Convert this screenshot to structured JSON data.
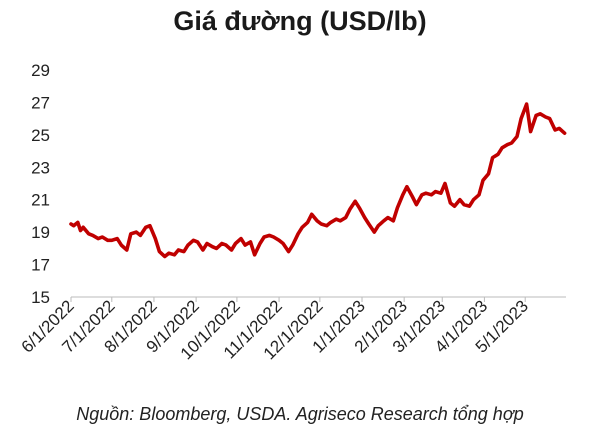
{
  "chart_data": {
    "type": "line",
    "title": "Giá đường (USD/lb)",
    "xlabel": "",
    "ylabel": "",
    "ylim": [
      15,
      29
    ],
    "yticks": [
      15,
      17,
      19,
      21,
      23,
      25,
      27,
      29
    ],
    "xticks": [
      "6/1/2022",
      "7/1/2022",
      "8/1/2022",
      "9/1/2022",
      "10/1/2022",
      "11/1/2022",
      "12/1/2022",
      "1/1/2023",
      "2/1/2023",
      "3/1/2023",
      "4/1/2023",
      "5/1/2023"
    ],
    "grid": false,
    "legend": "none",
    "series": [
      {
        "color": "#c00000",
        "points": [
          [
            "2022-06-01",
            19.5
          ],
          [
            "2022-06-03",
            19.4
          ],
          [
            "2022-06-06",
            19.6
          ],
          [
            "2022-06-08",
            19.1
          ],
          [
            "2022-06-10",
            19.3
          ],
          [
            "2022-06-14",
            18.9
          ],
          [
            "2022-06-17",
            18.8
          ],
          [
            "2022-06-21",
            18.6
          ],
          [
            "2022-06-24",
            18.7
          ],
          [
            "2022-06-28",
            18.5
          ],
          [
            "2022-07-01",
            18.5
          ],
          [
            "2022-07-05",
            18.6
          ],
          [
            "2022-07-08",
            18.2
          ],
          [
            "2022-07-12",
            17.9
          ],
          [
            "2022-07-15",
            18.9
          ],
          [
            "2022-07-19",
            19.0
          ],
          [
            "2022-07-22",
            18.8
          ],
          [
            "2022-07-26",
            19.3
          ],
          [
            "2022-07-29",
            19.4
          ],
          [
            "2022-08-02",
            18.6
          ],
          [
            "2022-08-05",
            17.8
          ],
          [
            "2022-08-09",
            17.5
          ],
          [
            "2022-08-12",
            17.7
          ],
          [
            "2022-08-16",
            17.6
          ],
          [
            "2022-08-19",
            17.9
          ],
          [
            "2022-08-23",
            17.8
          ],
          [
            "2022-08-26",
            18.2
          ],
          [
            "2022-08-30",
            18.5
          ],
          [
            "2022-09-02",
            18.4
          ],
          [
            "2022-09-06",
            17.9
          ],
          [
            "2022-09-09",
            18.3
          ],
          [
            "2022-09-13",
            18.1
          ],
          [
            "2022-09-16",
            18.0
          ],
          [
            "2022-09-20",
            18.3
          ],
          [
            "2022-09-23",
            18.2
          ],
          [
            "2022-09-27",
            17.9
          ],
          [
            "2022-09-30",
            18.3
          ],
          [
            "2022-10-04",
            18.6
          ],
          [
            "2022-10-07",
            18.2
          ],
          [
            "2022-10-11",
            18.4
          ],
          [
            "2022-10-14",
            17.6
          ],
          [
            "2022-10-18",
            18.3
          ],
          [
            "2022-10-21",
            18.7
          ],
          [
            "2022-10-25",
            18.8
          ],
          [
            "2022-10-28",
            18.7
          ],
          [
            "2022-11-01",
            18.5
          ],
          [
            "2022-11-04",
            18.3
          ],
          [
            "2022-11-08",
            17.8
          ],
          [
            "2022-11-11",
            18.2
          ],
          [
            "2022-11-15",
            18.9
          ],
          [
            "2022-11-18",
            19.3
          ],
          [
            "2022-11-22",
            19.6
          ],
          [
            "2022-11-25",
            20.1
          ],
          [
            "2022-11-29",
            19.7
          ],
          [
            "2022-12-02",
            19.5
          ],
          [
            "2022-12-06",
            19.4
          ],
          [
            "2022-12-09",
            19.6
          ],
          [
            "2022-12-13",
            19.8
          ],
          [
            "2022-12-16",
            19.7
          ],
          [
            "2022-12-20",
            19.9
          ],
          [
            "2022-12-23",
            20.4
          ],
          [
            "2022-12-27",
            20.9
          ],
          [
            "2022-12-30",
            20.5
          ],
          [
            "2023-01-03",
            19.9
          ],
          [
            "2023-01-06",
            19.5
          ],
          [
            "2023-01-10",
            19.0
          ],
          [
            "2023-01-13",
            19.4
          ],
          [
            "2023-01-17",
            19.7
          ],
          [
            "2023-01-20",
            19.9
          ],
          [
            "2023-01-24",
            19.7
          ],
          [
            "2023-01-27",
            20.5
          ],
          [
            "2023-01-31",
            21.3
          ],
          [
            "2023-02-03",
            21.8
          ],
          [
            "2023-02-07",
            21.2
          ],
          [
            "2023-02-10",
            20.7
          ],
          [
            "2023-02-14",
            21.3
          ],
          [
            "2023-02-17",
            21.4
          ],
          [
            "2023-02-21",
            21.3
          ],
          [
            "2023-02-24",
            21.5
          ],
          [
            "2023-02-28",
            21.4
          ],
          [
            "2023-03-03",
            22.0
          ],
          [
            "2023-03-07",
            20.8
          ],
          [
            "2023-03-10",
            20.6
          ],
          [
            "2023-03-14",
            21.0
          ],
          [
            "2023-03-17",
            20.7
          ],
          [
            "2023-03-21",
            20.6
          ],
          [
            "2023-03-24",
            21.0
          ],
          [
            "2023-03-28",
            21.3
          ],
          [
            "2023-03-31",
            22.2
          ],
          [
            "2023-04-04",
            22.6
          ],
          [
            "2023-04-07",
            23.6
          ],
          [
            "2023-04-11",
            23.8
          ],
          [
            "2023-04-14",
            24.2
          ],
          [
            "2023-04-18",
            24.4
          ],
          [
            "2023-04-21",
            24.5
          ],
          [
            "2023-04-25",
            24.9
          ],
          [
            "2023-04-28",
            26.0
          ],
          [
            "2023-05-02",
            26.9
          ],
          [
            "2023-05-05",
            25.2
          ],
          [
            "2023-05-09",
            26.2
          ],
          [
            "2023-05-12",
            26.3
          ],
          [
            "2023-05-16",
            26.1
          ],
          [
            "2023-05-19",
            26.0
          ],
          [
            "2023-05-23",
            25.3
          ],
          [
            "2023-05-26",
            25.4
          ],
          [
            "2023-05-30",
            25.1
          ]
        ]
      }
    ]
  },
  "source_note": "Nguồn: Bloomberg, USDA. Agriseco Research tổng hợp"
}
